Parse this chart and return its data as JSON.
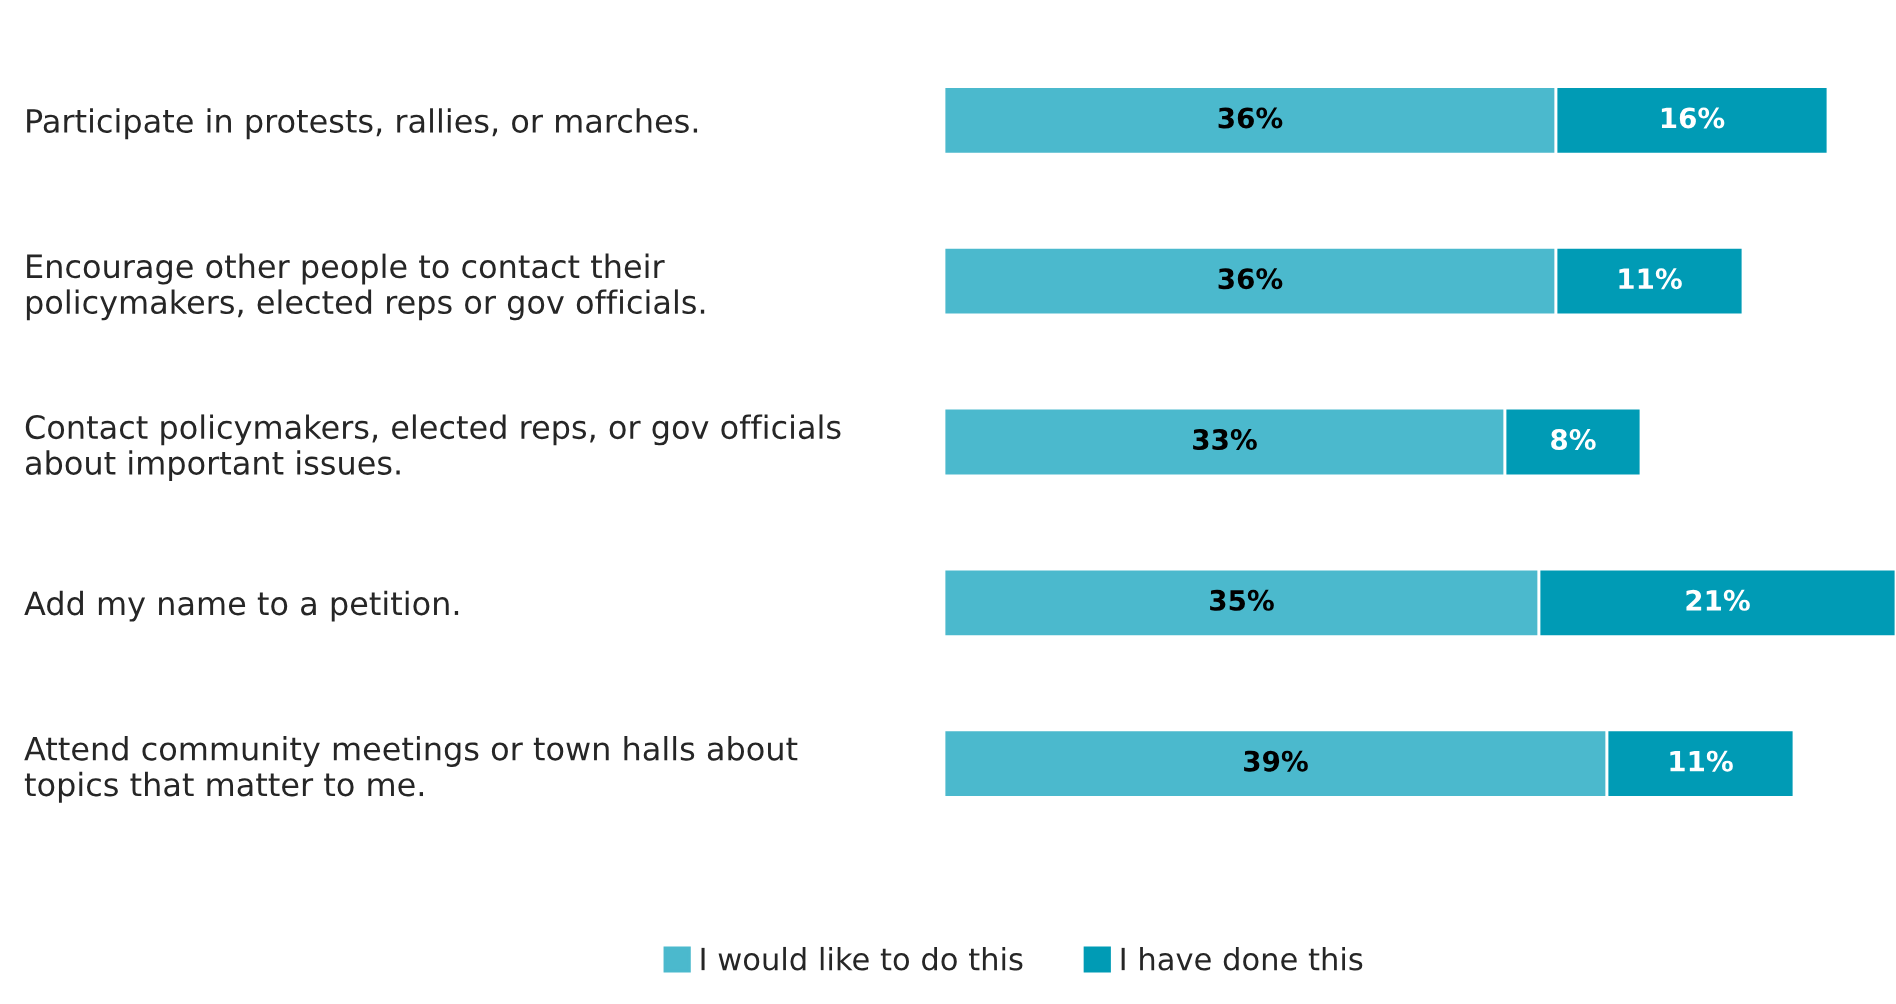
{
  "chart_data": {
    "type": "bar",
    "orientation": "horizontal",
    "stacked": true,
    "categories": [
      "Participate in protests, rallies, or marches.",
      "Encourage other people to contact their\npolicymakers, elected reps or gov officials.",
      "Contact policymakers, elected reps, or gov officials\nabout important issues.",
      "Add my name to a petition.",
      "Attend community meetings or town halls about\ntopics that matter to me."
    ],
    "series": [
      {
        "name": "I would like to do this",
        "color": "#4bb9cd",
        "values": [
          36,
          36,
          33,
          35,
          39
        ],
        "value_labels": [
          "36%",
          "36%",
          "33%",
          "35%",
          "39%"
        ]
      },
      {
        "name": "I have done this",
        "color": "#009bb5",
        "values": [
          16,
          11,
          8,
          21,
          11
        ],
        "value_labels": [
          "16%",
          "11%",
          "8%",
          "21%",
          "11%"
        ]
      }
    ],
    "xlim": [
      0,
      56
    ],
    "tick_labels": "y",
    "grid": false,
    "legend": "bottom"
  }
}
